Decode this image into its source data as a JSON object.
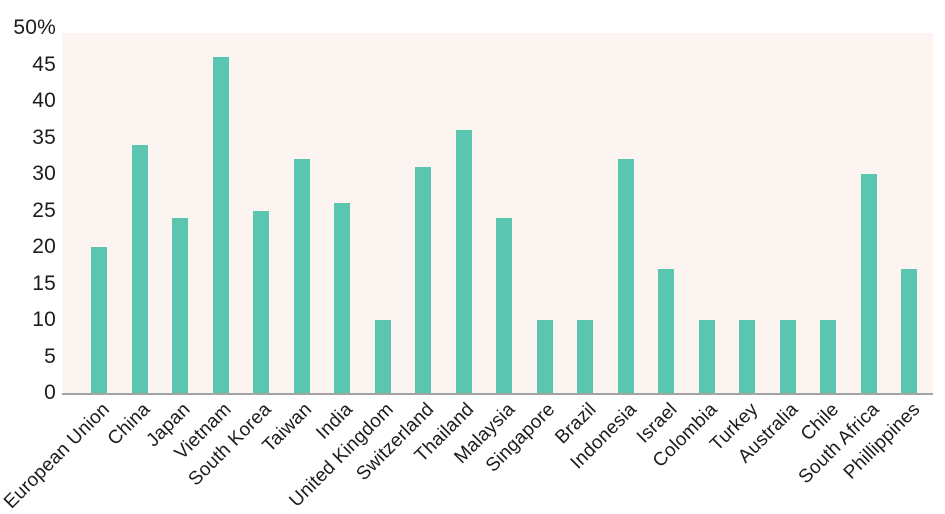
{
  "chart_data": {
    "type": "bar",
    "title": "",
    "xlabel": "",
    "ylabel": "",
    "categories": [
      "European Union",
      "China",
      "Japan",
      "Vietnam",
      "South Korea",
      "Taiwan",
      "India",
      "United Kingdom",
      "Switzerland",
      "Thailand",
      "Malaysia",
      "Singapore",
      "Brazil",
      "Indonesia",
      "Israel",
      "Colombia",
      "Turkey",
      "Australia",
      "Chile",
      "South Africa",
      "Phillippines"
    ],
    "values": [
      20,
      34,
      24,
      46,
      25,
      32,
      26,
      10,
      31,
      36,
      24,
      10,
      10,
      32,
      17,
      10,
      10,
      10,
      10,
      30,
      17
    ],
    "ylim": [
      0,
      50
    ],
    "y_ticks": [
      {
        "value": 50,
        "label": "50%"
      },
      {
        "value": 45,
        "label": "45"
      },
      {
        "value": 40,
        "label": "40"
      },
      {
        "value": 35,
        "label": "35"
      },
      {
        "value": 30,
        "label": "30"
      },
      {
        "value": 25,
        "label": "25"
      },
      {
        "value": 20,
        "label": "20"
      },
      {
        "value": 15,
        "label": "15"
      },
      {
        "value": 10,
        "label": "10"
      },
      {
        "value": 5,
        "label": "5"
      },
      {
        "value": 0,
        "label": "0"
      }
    ],
    "grid": "off",
    "legend": "none",
    "x_label_rotation_deg": -45,
    "colors": {
      "bar": "#5ac6b0",
      "plot_background": "#fbf4f1",
      "axis_line": "#a3a3a3",
      "text": "#1c1c1c",
      "page_background": "#ffffff"
    }
  }
}
